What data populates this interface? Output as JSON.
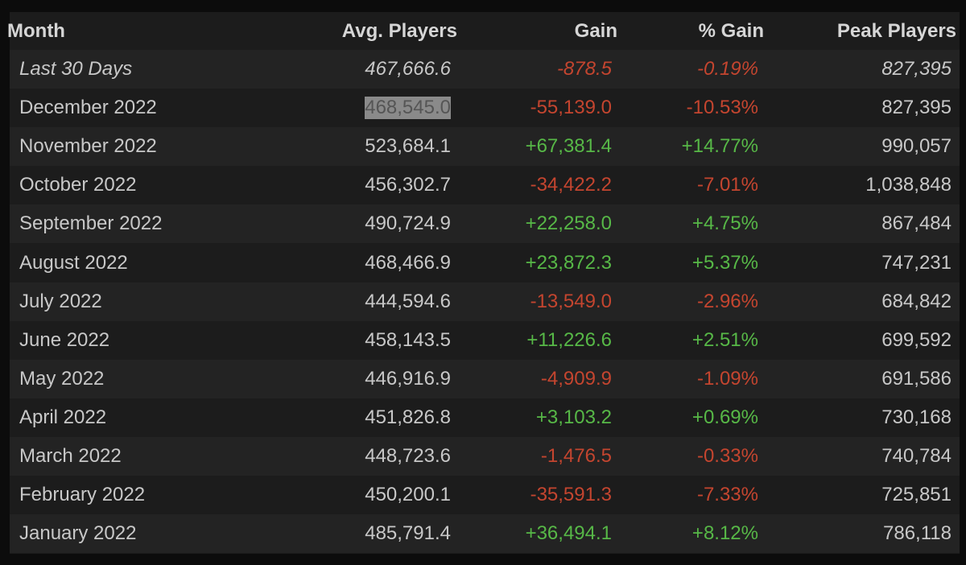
{
  "table": {
    "header": [
      "Month",
      "Avg. Players",
      "Gain",
      "% Gain",
      "Peak Players"
    ],
    "rows": [
      [
        "Last 30 Days",
        "467,666.6",
        "-878.5",
        "-0.19%",
        "827,395"
      ],
      [
        "December 2022",
        "468,545.0",
        "-55,139.0",
        "-10.53%",
        "827,395"
      ],
      [
        "November 2022",
        "523,684.1",
        "+67,381.4",
        "+14.77%",
        "990,057"
      ],
      [
        "October 2022",
        "456,302.7",
        "-34,422.2",
        "-7.01%",
        "1,038,848"
      ],
      [
        "September 2022",
        "490,724.9",
        "+22,258.0",
        "+4.75%",
        "867,484"
      ],
      [
        "August 2022",
        "468,466.9",
        "+23,872.3",
        "+5.37%",
        "747,231"
      ],
      [
        "July 2022",
        "444,594.6",
        "-13,549.0",
        "-2.96%",
        "684,842"
      ],
      [
        "June 2022",
        "458,143.5",
        "+11,226.6",
        "+2.51%",
        "699,592"
      ],
      [
        "May 2022",
        "446,916.9",
        "-4,909.9",
        "-1.09%",
        "691,586"
      ],
      [
        "April 2022",
        "451,826.8",
        "+3,103.2",
        "+0.69%",
        "730,168"
      ],
      [
        "March 2022",
        "448,723.6",
        "-1,476.5",
        "-0.33%",
        "740,784"
      ],
      [
        "February 2022",
        "450,200.1",
        "-35,591.3",
        "-7.33%",
        "725,851"
      ],
      [
        "January 2022",
        "485,791.4",
        "+36,494.1",
        "+8.12%",
        "786,118"
      ]
    ],
    "selection": {
      "row": 1,
      "col": 1
    }
  }
}
